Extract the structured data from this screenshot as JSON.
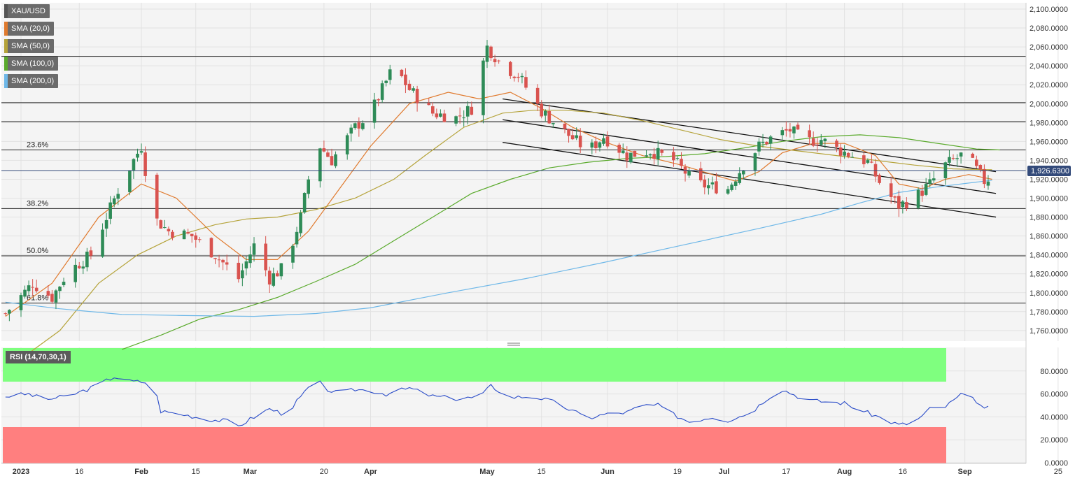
{
  "legend": [
    {
      "label": "XAU/USD",
      "color": "#555555"
    },
    {
      "label": "SMA (20,0)",
      "color": "#e07a2e"
    },
    {
      "label": "SMA (50,0)",
      "color": "#b5a33a"
    },
    {
      "label": "SMA (100,0)",
      "color": "#5aaa2c"
    },
    {
      "label": "SMA (200,0)",
      "color": "#6fb8e8"
    }
  ],
  "rsi_label": "RSI (14,70,30,1)",
  "chart_data": {
    "type": "candlestick",
    "symbol": "XAU/USD",
    "last_price": "1,926.6300",
    "price_axis": {
      "min": 1740,
      "max": 2100,
      "step": 20,
      "ticks": [
        "2,100.0000",
        "2,080.0000",
        "2,060.0000",
        "2,040.0000",
        "2,020.0000",
        "2,000.0000",
        "1,980.0000",
        "1,960.0000",
        "1,940.0000",
        "1,920.0000",
        "1,900.0000",
        "1,880.0000",
        "1,860.0000",
        "1,840.0000",
        "1,820.0000",
        "1,800.0000",
        "1,780.0000",
        "1,760.0000"
      ]
    },
    "x_axis": {
      "labels": [
        {
          "text": "2023",
          "day": 0
        },
        {
          "text": "16",
          "day": 15
        },
        {
          "text": "Feb",
          "day": 31
        },
        {
          "text": "15",
          "day": 45
        },
        {
          "text": "Mar",
          "day": 59
        },
        {
          "text": "20",
          "day": 78
        },
        {
          "text": "Apr",
          "day": 90
        },
        {
          "text": "May",
          "day": 120
        },
        {
          "text": "15",
          "day": 134
        },
        {
          "text": "Jun",
          "day": 151
        },
        {
          "text": "19",
          "day": 169
        },
        {
          "text": "Jul",
          "day": 181
        },
        {
          "text": "17",
          "day": 197
        },
        {
          "text": "Aug",
          "day": 212
        },
        {
          "text": "16",
          "day": 227
        },
        {
          "text": "Sep",
          "day": 243
        },
        {
          "text": "25",
          "day": 267
        }
      ]
    },
    "horizontal_levels": [
      {
        "price": 2050,
        "label": ""
      },
      {
        "price": 2001,
        "label": ""
      },
      {
        "price": 1981,
        "label": ""
      },
      {
        "price": 1951,
        "label": "23.6%"
      },
      {
        "price": 1889,
        "label": "38.2%"
      },
      {
        "price": 1839,
        "label": "50.0%"
      },
      {
        "price": 1789,
        "label": "61.8%"
      }
    ],
    "trend_lines": [
      {
        "from": [
          124,
          2005
        ],
        "to": [
          251,
          1928
        ]
      },
      {
        "from": [
          124,
          1983
        ],
        "to": [
          251,
          1905
        ]
      },
      {
        "from": [
          124,
          1959
        ],
        "to": [
          251,
          1880
        ]
      }
    ],
    "sma": [
      {
        "name": "SMA (20,0)",
        "color": "#e07a2e",
        "points": [
          [
            -4,
            1775
          ],
          [
            8,
            1810
          ],
          [
            20,
            1880
          ],
          [
            31,
            1915
          ],
          [
            40,
            1900
          ],
          [
            50,
            1860
          ],
          [
            58,
            1835
          ],
          [
            66,
            1835
          ],
          [
            74,
            1865
          ],
          [
            82,
            1910
          ],
          [
            90,
            1955
          ],
          [
            100,
            2000
          ],
          [
            110,
            2012
          ],
          [
            118,
            2005
          ],
          [
            126,
            2012
          ],
          [
            134,
            1995
          ],
          [
            142,
            1975
          ],
          [
            150,
            1960
          ],
          [
            160,
            1945
          ],
          [
            170,
            1935
          ],
          [
            178,
            1925
          ],
          [
            184,
            1918
          ],
          [
            190,
            1928
          ],
          [
            196,
            1948
          ],
          [
            204,
            1958
          ],
          [
            212,
            1958
          ],
          [
            220,
            1945
          ],
          [
            226,
            1915
          ],
          [
            232,
            1910
          ],
          [
            238,
            1920
          ],
          [
            244,
            1925
          ],
          [
            250,
            1920
          ]
        ]
      },
      {
        "name": "SMA (50,0)",
        "color": "#b5a33a",
        "points": [
          [
            0,
            1730
          ],
          [
            10,
            1760
          ],
          [
            20,
            1810
          ],
          [
            30,
            1840
          ],
          [
            40,
            1860
          ],
          [
            50,
            1872
          ],
          [
            58,
            1878
          ],
          [
            66,
            1880
          ],
          [
            76,
            1888
          ],
          [
            86,
            1900
          ],
          [
            96,
            1920
          ],
          [
            104,
            1945
          ],
          [
            114,
            1975
          ],
          [
            124,
            1990
          ],
          [
            132,
            1993
          ],
          [
            140,
            1993
          ],
          [
            150,
            1990
          ],
          [
            160,
            1982
          ],
          [
            170,
            1972
          ],
          [
            180,
            1962
          ],
          [
            190,
            1955
          ],
          [
            200,
            1950
          ],
          [
            210,
            1945
          ],
          [
            220,
            1940
          ],
          [
            230,
            1935
          ],
          [
            240,
            1931
          ],
          [
            250,
            1930
          ]
        ]
      },
      {
        "name": "SMA (100,0)",
        "color": "#5aaa2c",
        "points": [
          [
            26,
            1740
          ],
          [
            36,
            1755
          ],
          [
            46,
            1772
          ],
          [
            56,
            1782
          ],
          [
            66,
            1795
          ],
          [
            76,
            1812
          ],
          [
            86,
            1830
          ],
          [
            96,
            1855
          ],
          [
            106,
            1880
          ],
          [
            116,
            1905
          ],
          [
            126,
            1920
          ],
          [
            136,
            1932
          ],
          [
            146,
            1938
          ],
          [
            156,
            1942
          ],
          [
            166,
            1944
          ],
          [
            176,
            1947
          ],
          [
            186,
            1953
          ],
          [
            196,
            1960
          ],
          [
            206,
            1965
          ],
          [
            216,
            1967
          ],
          [
            226,
            1964
          ],
          [
            236,
            1958
          ],
          [
            246,
            1952
          ],
          [
            252,
            1951
          ]
        ]
      },
      {
        "name": "SMA (200,0)",
        "color": "#6fb8e8",
        "points": [
          [
            -4,
            1790
          ],
          [
            10,
            1783
          ],
          [
            26,
            1777
          ],
          [
            40,
            1776
          ],
          [
            60,
            1775
          ],
          [
            76,
            1778
          ],
          [
            90,
            1784
          ],
          [
            110,
            1800
          ],
          [
            130,
            1815
          ],
          [
            150,
            1832
          ],
          [
            170,
            1850
          ],
          [
            190,
            1868
          ],
          [
            206,
            1883
          ],
          [
            216,
            1895
          ],
          [
            226,
            1906
          ],
          [
            236,
            1912
          ],
          [
            246,
            1917
          ],
          [
            250,
            1919
          ]
        ]
      }
    ],
    "candle_anchors": [
      [
        -4,
        1778
      ],
      [
        3,
        1810
      ],
      [
        8,
        1795
      ],
      [
        12,
        1822
      ],
      [
        18,
        1840
      ],
      [
        22,
        1880
      ],
      [
        26,
        1918
      ],
      [
        31,
        1955
      ],
      [
        34,
        1880
      ],
      [
        38,
        1865
      ],
      [
        44,
        1860
      ],
      [
        50,
        1840
      ],
      [
        56,
        1815
      ],
      [
        60,
        1850
      ],
      [
        64,
        1815
      ],
      [
        68,
        1828
      ],
      [
        72,
        1880
      ],
      [
        76,
        1960
      ],
      [
        80,
        1940
      ],
      [
        86,
        1975
      ],
      [
        90,
        1990
      ],
      [
        96,
        2040
      ],
      [
        100,
        2015
      ],
      [
        106,
        1990
      ],
      [
        112,
        1985
      ],
      [
        116,
        1995
      ],
      [
        120,
        2060
      ],
      [
        124,
        2040
      ],
      [
        128,
        2030
      ],
      [
        134,
        1992
      ],
      [
        140,
        1970
      ],
      [
        146,
        1950
      ],
      [
        150,
        1965
      ],
      [
        156,
        1945
      ],
      [
        162,
        1950
      ],
      [
        168,
        1940
      ],
      [
        174,
        1915
      ],
      [
        178,
        1912
      ],
      [
        182,
        1910
      ],
      [
        186,
        1935
      ],
      [
        190,
        1955
      ],
      [
        194,
        1966
      ],
      [
        198,
        1972
      ],
      [
        202,
        1960
      ],
      [
        206,
        1962
      ],
      [
        210,
        1952
      ],
      [
        214,
        1945
      ],
      [
        218,
        1938
      ],
      [
        222,
        1910
      ],
      [
        226,
        1892
      ],
      [
        230,
        1900
      ],
      [
        234,
        1915
      ],
      [
        238,
        1935
      ],
      [
        242,
        1945
      ],
      [
        245,
        1936
      ],
      [
        248,
        1918
      ],
      [
        251,
        1926
      ]
    ],
    "rsi": {
      "axis": {
        "min": 0,
        "max": 100,
        "ticks": [
          "80.0000",
          "60.0000",
          "40.0000",
          "20.0000",
          "0.0000"
        ]
      },
      "overbought": 70,
      "oversold": 30,
      "anchors": [
        [
          -4,
          58
        ],
        [
          2,
          60
        ],
        [
          6,
          55
        ],
        [
          12,
          58
        ],
        [
          18,
          65
        ],
        [
          24,
          75
        ],
        [
          28,
          71
        ],
        [
          34,
          70
        ],
        [
          36,
          45
        ],
        [
          42,
          42
        ],
        [
          48,
          38
        ],
        [
          54,
          36
        ],
        [
          56,
          32
        ],
        [
          60,
          40
        ],
        [
          64,
          47
        ],
        [
          68,
          42
        ],
        [
          72,
          57
        ],
        [
          76,
          74
        ],
        [
          78,
          65
        ],
        [
          82,
          60
        ],
        [
          86,
          64
        ],
        [
          90,
          63
        ],
        [
          94,
          60
        ],
        [
          100,
          65
        ],
        [
          106,
          58
        ],
        [
          112,
          56
        ],
        [
          118,
          57
        ],
        [
          121,
          67
        ],
        [
          126,
          57
        ],
        [
          132,
          58
        ],
        [
          138,
          52
        ],
        [
          142,
          45
        ],
        [
          146,
          39
        ],
        [
          150,
          42
        ],
        [
          156,
          44
        ],
        [
          160,
          50
        ],
        [
          164,
          50
        ],
        [
          168,
          42
        ],
        [
          172,
          36
        ],
        [
          178,
          40
        ],
        [
          182,
          37
        ],
        [
          188,
          44
        ],
        [
          192,
          56
        ],
        [
          196,
          64
        ],
        [
          200,
          58
        ],
        [
          204,
          54
        ],
        [
          208,
          53
        ],
        [
          212,
          52
        ],
        [
          216,
          46
        ],
        [
          220,
          41
        ],
        [
          226,
          33
        ],
        [
          230,
          35
        ],
        [
          234,
          47
        ],
        [
          238,
          49
        ],
        [
          242,
          59
        ],
        [
          246,
          54
        ],
        [
          248,
          46
        ],
        [
          251,
          51
        ]
      ]
    }
  }
}
